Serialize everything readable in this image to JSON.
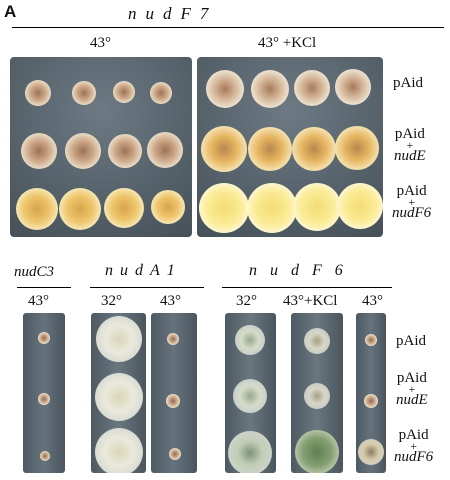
{
  "panel_letter": "A",
  "top": {
    "title": "nudF7",
    "col1": "43°",
    "col2": "43° +KCl",
    "rows": [
      {
        "line1": "pAid",
        "plus": "",
        "line3": ""
      },
      {
        "line1": "pAid",
        "plus": "+",
        "line3": "nudE"
      },
      {
        "line1": "pAid",
        "plus": "+",
        "line3": "nudF6"
      }
    ]
  },
  "bottom": {
    "nudC3": {
      "title": "nudC3",
      "cols": [
        "43°"
      ]
    },
    "nudA1": {
      "title": "nudA1",
      "cols": [
        "32°",
        "43°"
      ]
    },
    "nudF6": {
      "title": "nudF6",
      "cols": [
        "32°",
        "43°+KCl",
        "43°"
      ]
    },
    "rows": [
      {
        "line1": "pAid",
        "plus": "",
        "line3": ""
      },
      {
        "line1": "pAid",
        "plus": "+",
        "line3": "nudE"
      },
      {
        "line1": "pAid",
        "plus": "+",
        "line3": "nudF6"
      }
    ]
  },
  "colors": {
    "plate": "#58656f",
    "plate_light": "#7a8790",
    "colony_brown": "#b8906c",
    "colony_yellow": "#f1e08a",
    "colony_white": "#e4e2d6",
    "colony_green": "#7f9a6e"
  }
}
